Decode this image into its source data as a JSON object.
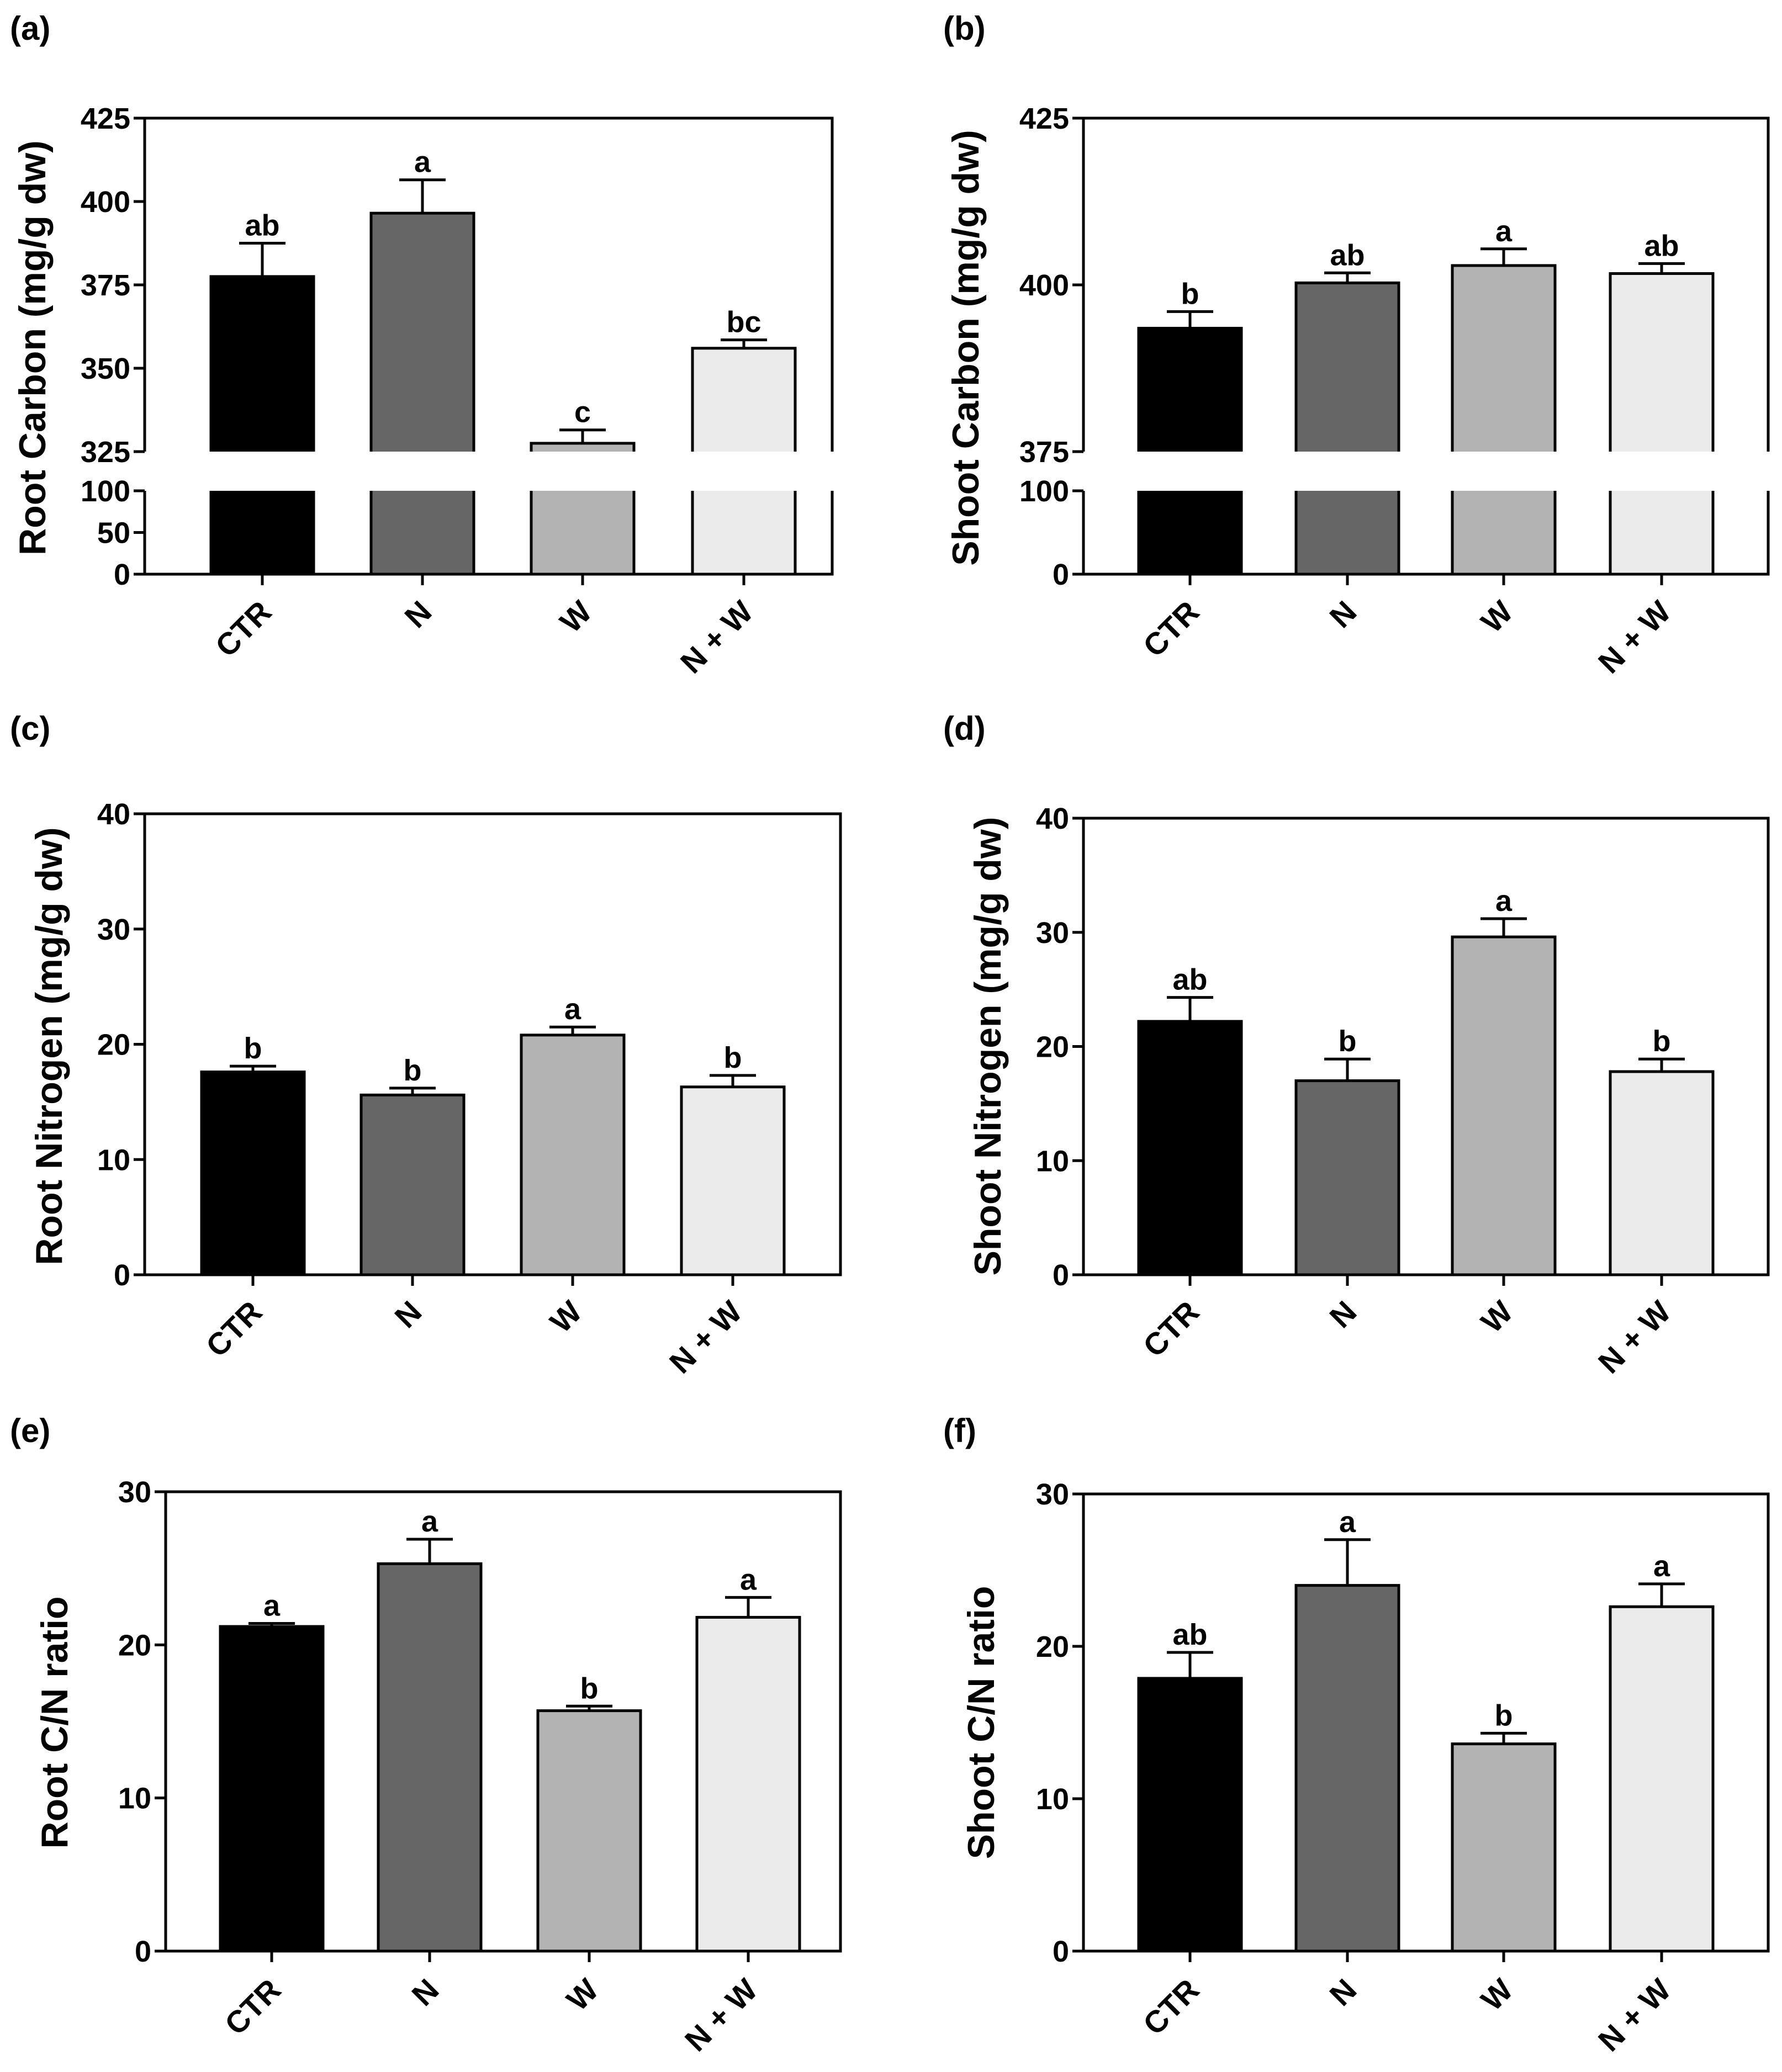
{
  "figure": {
    "categories": [
      "CTR",
      "N",
      "W",
      "N + W"
    ],
    "bar_colors": [
      "#000000",
      "#666666",
      "#b3b3b3",
      "#ebebeb"
    ],
    "panel_labels": [
      "(a)",
      "(b)",
      "(c)",
      "(d)",
      "(e)",
      "(f)"
    ]
  },
  "chart_data": [
    {
      "id": "a",
      "type": "bar",
      "title": "",
      "xlabel": "",
      "ylabel": "Root Carbon (mg/g dw)",
      "categories": [
        "CTR",
        "N",
        "W",
        "N + W"
      ],
      "values": [
        377.5,
        396.5,
        327.5,
        356
      ],
      "errors": [
        10,
        10,
        4,
        2.5
      ],
      "significance": [
        "ab",
        "a",
        "c",
        "bc"
      ],
      "broken_axis": true,
      "upper_ylim": [
        325,
        425
      ],
      "upper_ticks": [
        325,
        350,
        375,
        400,
        425
      ],
      "lower_ylim": [
        0,
        100
      ],
      "lower_ticks": [
        0,
        50,
        100
      ]
    },
    {
      "id": "b",
      "type": "bar",
      "title": "",
      "xlabel": "",
      "ylabel": "Shoot Carbon (mg/g dw)",
      "categories": [
        "CTR",
        "N",
        "W",
        "N + W"
      ],
      "values": [
        393.5,
        400.3,
        402.9,
        401.7
      ],
      "errors": [
        2.5,
        1.5,
        2.5,
        1.5
      ],
      "significance": [
        "b",
        "ab",
        "a",
        "ab"
      ],
      "broken_axis": true,
      "upper_ylim": [
        375,
        425
      ],
      "upper_ticks": [
        375,
        400,
        425
      ],
      "lower_ylim": [
        0,
        100
      ],
      "lower_ticks": [
        0,
        100
      ]
    },
    {
      "id": "c",
      "type": "bar",
      "title": "",
      "xlabel": "",
      "ylabel": "Root Nitrogen (mg/g dw)",
      "categories": [
        "CTR",
        "N",
        "W",
        "N + W"
      ],
      "values": [
        17.6,
        15.6,
        20.8,
        16.3
      ],
      "errors": [
        0.5,
        0.6,
        0.7,
        1.0
      ],
      "significance": [
        "b",
        "b",
        "a",
        "b"
      ],
      "ylim": [
        0,
        40
      ],
      "yticks": [
        0,
        10,
        20,
        30,
        40
      ]
    },
    {
      "id": "d",
      "type": "bar",
      "title": "",
      "xlabel": "",
      "ylabel": "Shoot Nitrogen (mg/g dw)",
      "categories": [
        "CTR",
        "N",
        "W",
        "N + W"
      ],
      "values": [
        22.2,
        17.0,
        29.6,
        17.8
      ],
      "errors": [
        2.1,
        1.9,
        1.6,
        1.1
      ],
      "significance": [
        "ab",
        "b",
        "a",
        "b"
      ],
      "ylim": [
        0,
        40
      ],
      "yticks": [
        0,
        10,
        20,
        30,
        40
      ]
    },
    {
      "id": "e",
      "type": "bar",
      "title": "",
      "xlabel": "",
      "ylabel": "Root C/N ratio",
      "categories": [
        "CTR",
        "N",
        "W",
        "N + W"
      ],
      "values": [
        21.2,
        25.3,
        15.7,
        21.8
      ],
      "errors": [
        0.2,
        1.6,
        0.3,
        1.3
      ],
      "significance": [
        "a",
        "a",
        "b",
        "a"
      ],
      "ylim": [
        0,
        30
      ],
      "yticks": [
        0,
        10,
        20,
        30
      ]
    },
    {
      "id": "f",
      "type": "bar",
      "title": "",
      "xlabel": "",
      "ylabel": "Shoot C/N ratio",
      "categories": [
        "CTR",
        "N",
        "W",
        "N + W"
      ],
      "values": [
        17.9,
        24.0,
        13.6,
        22.6
      ],
      "errors": [
        1.7,
        3.0,
        0.7,
        1.5
      ],
      "significance": [
        "ab",
        "a",
        "b",
        "a"
      ],
      "ylim": [
        0,
        30
      ],
      "yticks": [
        0,
        10,
        20,
        30
      ]
    }
  ]
}
